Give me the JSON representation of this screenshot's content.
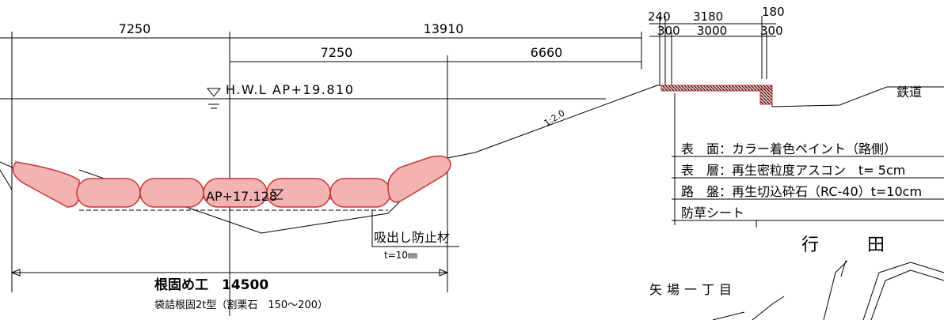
{
  "dimensions": {
    "top_row": [
      "7250",
      "13910"
    ],
    "second_row": [
      "7250",
      "6660"
    ],
    "bottom": "根固め工　14500"
  },
  "water_level": {
    "hwl": "H.W.L AP+19.810",
    "low": "AP+17.128"
  },
  "slope": "1:2.0",
  "bags": {
    "material": "吸出し防止材",
    "thickness": "t=10㎜",
    "spec": "袋詰根固2t型（割栗石　150～200）"
  },
  "road": {
    "dims_top": [
      "240",
      "3180",
      "180"
    ],
    "dims_bottom": [
      "300",
      "3000",
      "300"
    ],
    "railway": "鉄道",
    "layers": [
      "表　面：カラー着色ペイント（路側）",
      "表　層：再生密粒度アスコン　t= 5cm",
      "路　盤：再生切込砕石（RC-40）t=10cm",
      "防草シート"
    ]
  },
  "map": {
    "town": [
      "行",
      "田"
    ],
    "district": "矢場一丁目"
  }
}
